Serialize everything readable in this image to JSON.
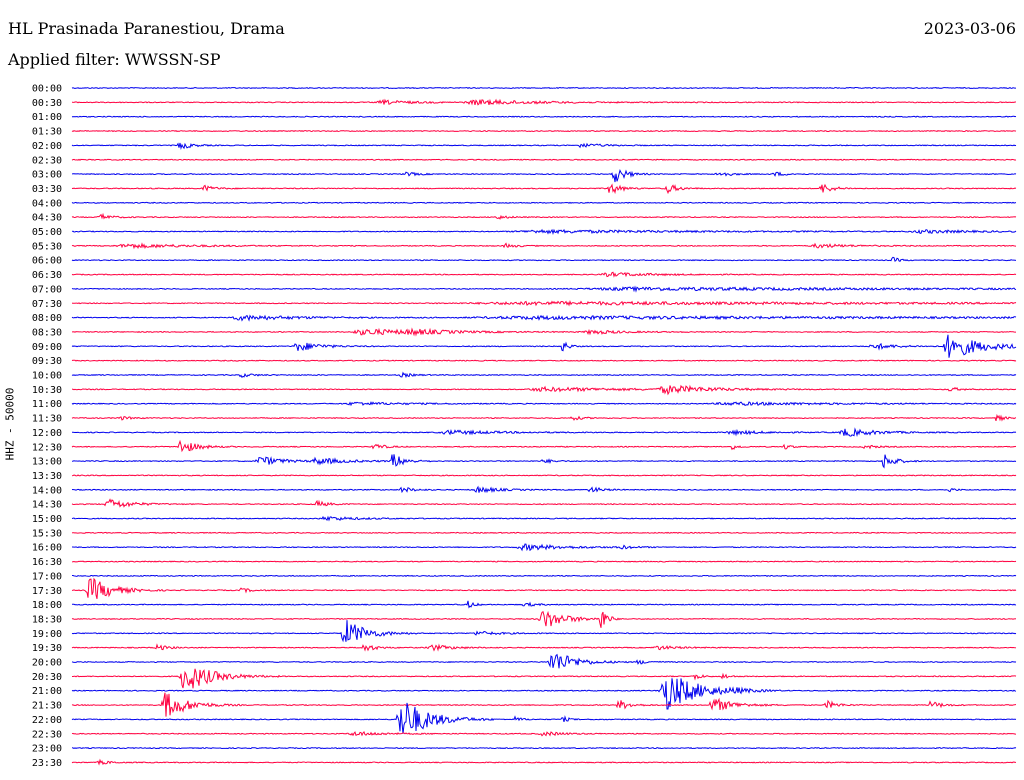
{
  "header": {
    "station": "HL Prasinada Paranestiou, Drama",
    "date": "2023-03-06",
    "filter": "Applied filter: WWSSN-SP"
  },
  "colors": {
    "even": "#0000ee",
    "odd": "#ff0040"
  },
  "chart_data": {
    "type": "line",
    "title": "HL Prasinada Paranestiou, Drama",
    "ylabel": "HHZ - 50000",
    "xlabel": "",
    "rows": [
      {
        "label": "00:00",
        "bursts": []
      },
      {
        "label": "00:30",
        "bursts": [
          [
            0.33,
            0.03,
            2
          ],
          [
            0.43,
            0.06,
            2.5
          ]
        ]
      },
      {
        "label": "01:00",
        "bursts": []
      },
      {
        "label": "01:30",
        "bursts": []
      },
      {
        "label": "02:00",
        "bursts": [
          [
            0.115,
            0.01,
            4
          ],
          [
            0.54,
            0.02,
            2
          ]
        ]
      },
      {
        "label": "02:30",
        "bursts": []
      },
      {
        "label": "03:00",
        "bursts": [
          [
            0.355,
            0.01,
            2
          ],
          [
            0.575,
            0.01,
            9
          ],
          [
            0.685,
            0.01,
            3
          ],
          [
            0.745,
            0.01,
            2
          ]
        ]
      },
      {
        "label": "03:30",
        "bursts": [
          [
            0.14,
            0.01,
            3
          ],
          [
            0.57,
            0.01,
            6
          ],
          [
            0.63,
            0.01,
            5
          ],
          [
            0.795,
            0.01,
            5
          ]
        ]
      },
      {
        "label": "04:00",
        "bursts": []
      },
      {
        "label": "04:30",
        "bursts": [
          [
            0.03,
            0.01,
            3
          ],
          [
            0.45,
            0.01,
            2
          ]
        ]
      },
      {
        "label": "05:00",
        "bursts": [
          [
            0.5,
            0.15,
            1.5
          ],
          [
            0.9,
            0.05,
            1.5
          ]
        ]
      },
      {
        "label": "05:30",
        "bursts": [
          [
            0.06,
            0.06,
            2
          ],
          [
            0.46,
            0.01,
            2
          ],
          [
            0.79,
            0.03,
            2
          ]
        ]
      },
      {
        "label": "06:00",
        "bursts": [
          [
            0.87,
            0.005,
            3
          ]
        ]
      },
      {
        "label": "06:30",
        "bursts": [
          [
            0.57,
            0.04,
            2
          ]
        ]
      },
      {
        "label": "07:00",
        "bursts": [
          [
            0.6,
            0.3,
            1.5
          ]
        ]
      },
      {
        "label": "07:30",
        "bursts": [
          [
            0.5,
            0.4,
            1.5
          ]
        ]
      },
      {
        "label": "08:00",
        "bursts": [
          [
            0.18,
            0.06,
            2.5
          ],
          [
            0.5,
            0.4,
            1.5
          ]
        ]
      },
      {
        "label": "08:30",
        "bursts": [
          [
            0.31,
            0.06,
            3
          ],
          [
            0.36,
            0.03,
            2
          ],
          [
            0.55,
            0.03,
            2
          ]
        ]
      },
      {
        "label": "09:00",
        "bursts": [
          [
            0.24,
            0.02,
            5
          ],
          [
            0.52,
            0.005,
            6
          ],
          [
            0.93,
            0.03,
            13
          ],
          [
            0.85,
            0.02,
            3
          ]
        ]
      },
      {
        "label": "09:30",
        "bursts": []
      },
      {
        "label": "10:00",
        "bursts": [
          [
            0.18,
            0.01,
            2
          ],
          [
            0.35,
            0.01,
            2
          ]
        ]
      },
      {
        "label": "10:30",
        "bursts": [
          [
            0.5,
            0.08,
            2
          ],
          [
            0.63,
            0.04,
            4
          ],
          [
            0.93,
            0.01,
            2
          ]
        ]
      },
      {
        "label": "11:00",
        "bursts": [
          [
            0.3,
            0.05,
            1.5
          ],
          [
            0.7,
            0.1,
            1.5
          ]
        ]
      },
      {
        "label": "11:30",
        "bursts": [
          [
            0.05,
            0.01,
            2
          ],
          [
            0.53,
            0.01,
            2
          ],
          [
            0.98,
            0.005,
            4
          ]
        ]
      },
      {
        "label": "12:00",
        "bursts": [
          [
            0.4,
            0.05,
            2
          ],
          [
            0.82,
            0.03,
            4
          ],
          [
            0.7,
            0.03,
            2
          ]
        ]
      },
      {
        "label": "12:30",
        "bursts": [
          [
            0.115,
            0.015,
            7
          ],
          [
            0.32,
            0.01,
            3
          ],
          [
            0.7,
            0.005,
            3
          ],
          [
            0.755,
            0.005,
            3
          ],
          [
            0.84,
            0.01,
            2
          ]
        ]
      },
      {
        "label": "13:00",
        "bursts": [
          [
            0.2,
            0.02,
            5
          ],
          [
            0.26,
            0.03,
            3
          ],
          [
            0.34,
            0.01,
            8
          ],
          [
            0.5,
            0.01,
            2
          ],
          [
            0.86,
            0.01,
            8
          ]
        ]
      },
      {
        "label": "13:30",
        "bursts": []
      },
      {
        "label": "14:00",
        "bursts": [
          [
            0.35,
            0.01,
            3
          ],
          [
            0.43,
            0.02,
            3
          ],
          [
            0.55,
            0.01,
            3
          ],
          [
            0.93,
            0.005,
            2
          ]
        ]
      },
      {
        "label": "14:30",
        "bursts": [
          [
            0.04,
            0.02,
            5
          ],
          [
            0.26,
            0.01,
            3
          ]
        ]
      },
      {
        "label": "15:00",
        "bursts": [
          [
            0.27,
            0.03,
            2
          ]
        ]
      },
      {
        "label": "15:30",
        "bursts": []
      },
      {
        "label": "16:00",
        "bursts": [
          [
            0.48,
            0.04,
            3
          ],
          [
            0.58,
            0.01,
            2
          ]
        ]
      },
      {
        "label": "16:30",
        "bursts": []
      },
      {
        "label": "17:00",
        "bursts": []
      },
      {
        "label": "17:30",
        "bursts": [
          [
            0.02,
            0.02,
            13
          ],
          [
            0.18,
            0.01,
            2
          ]
        ]
      },
      {
        "label": "18:00",
        "bursts": [
          [
            0.42,
            0.005,
            4
          ],
          [
            0.48,
            0.01,
            2
          ]
        ]
      },
      {
        "label": "18:30",
        "bursts": [
          [
            0.5,
            0.02,
            10
          ],
          [
            0.56,
            0.005,
            14
          ]
        ]
      },
      {
        "label": "19:00",
        "bursts": [
          [
            0.29,
            0.02,
            14
          ],
          [
            0.43,
            0.02,
            2
          ]
        ]
      },
      {
        "label": "19:30",
        "bursts": [
          [
            0.09,
            0.01,
            3
          ],
          [
            0.31,
            0.01,
            4
          ],
          [
            0.38,
            0.02,
            3
          ],
          [
            0.62,
            0.02,
            2
          ]
        ]
      },
      {
        "label": "20:00",
        "bursts": [
          [
            0.51,
            0.02,
            12
          ],
          [
            0.6,
            0.01,
            2
          ]
        ]
      },
      {
        "label": "20:30",
        "bursts": [
          [
            0.12,
            0.025,
            16
          ],
          [
            0.66,
            0.005,
            4
          ],
          [
            0.69,
            0.005,
            3
          ]
        ]
      },
      {
        "label": "21:00",
        "bursts": [
          [
            0.63,
            0.03,
            20
          ],
          [
            0.7,
            0.01,
            2
          ]
        ]
      },
      {
        "label": "21:30",
        "bursts": [
          [
            0.1,
            0.02,
            14
          ],
          [
            0.58,
            0.01,
            5
          ],
          [
            0.68,
            0.02,
            7
          ],
          [
            0.8,
            0.01,
            4
          ],
          [
            0.91,
            0.01,
            4
          ]
        ]
      },
      {
        "label": "22:00",
        "bursts": [
          [
            0.35,
            0.025,
            22
          ],
          [
            0.47,
            0.005,
            3
          ],
          [
            0.52,
            0.005,
            3
          ]
        ]
      },
      {
        "label": "22:30",
        "bursts": [
          [
            0.3,
            0.03,
            2
          ],
          [
            0.5,
            0.02,
            2
          ]
        ]
      },
      {
        "label": "23:00",
        "bursts": []
      },
      {
        "label": "23:30",
        "bursts": [
          [
            0.03,
            0.01,
            2
          ]
        ]
      }
    ]
  }
}
